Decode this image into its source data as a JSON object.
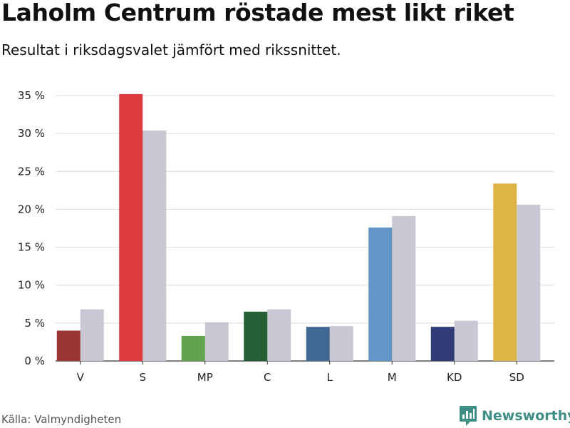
{
  "header": {
    "title": "Laholm Centrum röstade mest likt riket",
    "subtitle": "Resultat i riksdagsvalet jämfört med rikssnittet."
  },
  "footer": {
    "source": "Källa: Valmyndigheten",
    "brand": "Newsworthy",
    "brand_color": "#3f8e86",
    "brand_icon": "bar-chart-icon"
  },
  "chart_data": {
    "type": "bar",
    "title": "Laholm Centrum röstade mest likt riket",
    "subtitle": "Resultat i riksdagsvalet jämfört med rikssnittet.",
    "categories": [
      "V",
      "S",
      "MP",
      "C",
      "L",
      "M",
      "KD",
      "SD"
    ],
    "series": [
      {
        "values": [
          4.0,
          35.2,
          3.3,
          6.5,
          4.5,
          17.6,
          4.5,
          23.4
        ],
        "colors": [
          "#9b3534",
          "#dc3a3f",
          "#62a44e",
          "#245e35",
          "#416893",
          "#6196c6",
          "#303c75",
          "#dfb447"
        ]
      },
      {
        "values": [
          6.8,
          30.4,
          5.1,
          6.8,
          4.6,
          19.1,
          5.3,
          20.6
        ],
        "color": "#c8c7d3"
      }
    ],
    "yticks": [
      "0 %",
      "5 %",
      "10 %",
      "15 %",
      "20 %",
      "25 %",
      "30 %",
      "35 %"
    ],
    "ylim": [
      0,
      35
    ],
    "xlabel": "",
    "ylabel": "",
    "grid": true,
    "legend": "none"
  }
}
